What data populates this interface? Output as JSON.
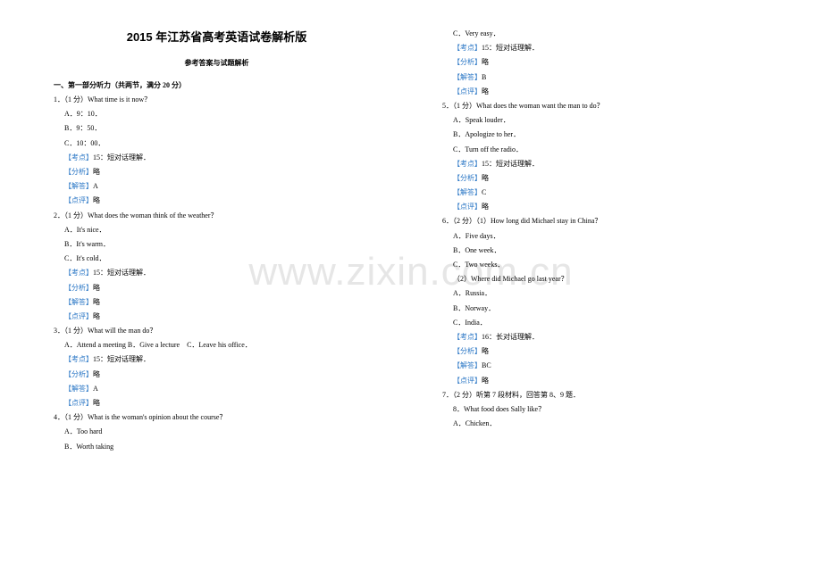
{
  "doc_title": "2015 年江苏省高考英语试卷解析版",
  "doc_subtitle": "参考答案与试题解析",
  "section1": "一、第一部分听力（共两节，满分 20 分）",
  "watermark": "www.zixin.com.cn",
  "labels": {
    "kaodian": "【考点】",
    "fenxi": "【分析】",
    "jieda": "【解答】",
    "dianping": "【点评】",
    "lue": "略",
    "kd15": "15：短对话理解．",
    "kd16": "16：长对话理解．"
  },
  "q1": {
    "stem": "1．（1 分）What time is it now？",
    "a": "A．9：10．",
    "b": "B．9：50．",
    "c": "C．10：00．",
    "ans": "A"
  },
  "q2": {
    "stem": "2．（1 分）What does the woman think of the weather？",
    "a": "A．It's nice．",
    "b": "B．It's warm．",
    "c": "C．It's cold．",
    "ans": "略"
  },
  "q3": {
    "stem": "3．（1 分）What will the man do？",
    "opts": "A．Attend a meeting B．Give a lecture　C．Leave his office．",
    "ans": "A"
  },
  "q4": {
    "stem": "4．（1 分）What is the woman's opinion about the course？",
    "a": "A．Too hard",
    "b": "B．Worth taking",
    "c": "C．Very easy．",
    "ans": "B"
  },
  "q5": {
    "stem": "5．（1 分）What does the woman want the man to do？",
    "a": "A．Speak louder．",
    "b": "B．Apologize to her．",
    "c": "C．Turn off the radio．",
    "ans": "C"
  },
  "q6": {
    "stem": "6．（2 分）（1）How long did Michael stay in China？",
    "a": "A．Five days．",
    "b": "B．One week．",
    "c": "C．Two weeks．",
    "sub2": "（2）Where did Michael go last year？",
    "a2": "A．Russia．",
    "b2": "B．Norway．",
    "c2": "C．India．",
    "ans": "BC"
  },
  "q7": {
    "stem": "7．（2 分）听第 7 段材料，回答第 8、9 题．",
    "sub": "8．What food does Sally like？",
    "a": "A．Chicken．"
  }
}
